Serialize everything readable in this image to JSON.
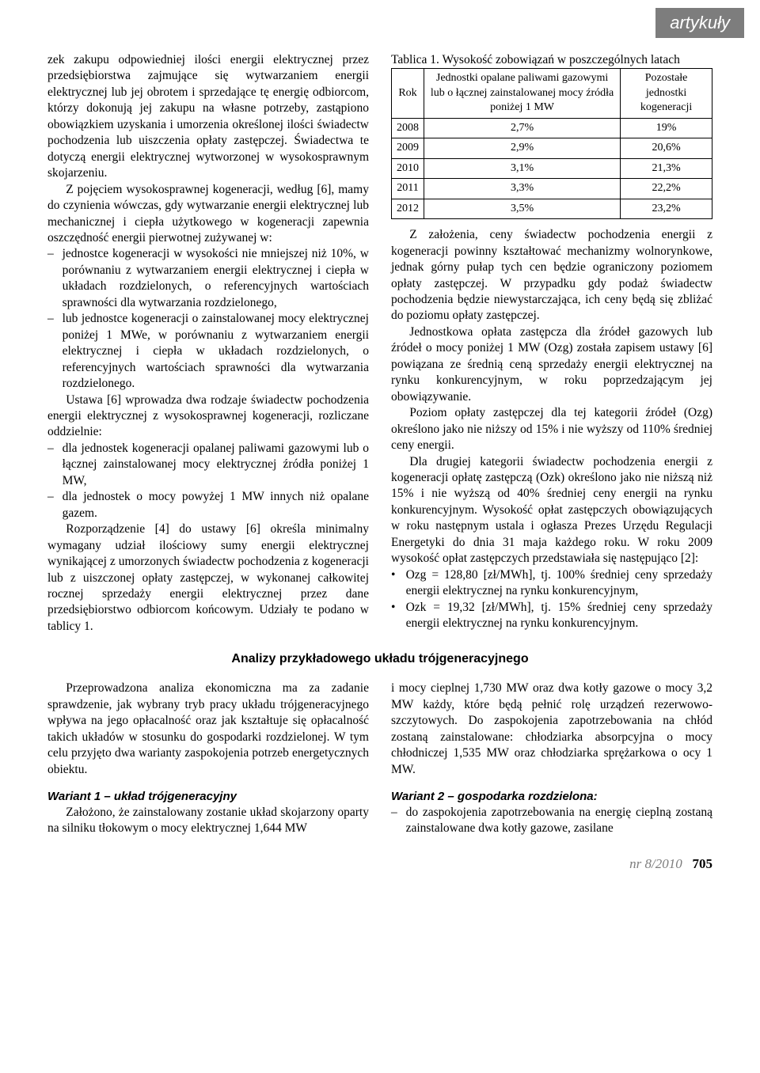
{
  "badge": "artykuły",
  "col_left": {
    "p1": "zek zakupu odpowiedniej ilości energii elektrycznej przez przedsiębiorstwa zajmujące się wytwarzaniem energii elektrycznej lub jej obrotem i sprzedające tę energię odbiorcom, którzy dokonują jej zakupu na własne potrzeby, zastąpiono obowiązkiem uzyskania i umorzenia określonej ilości świadectw pochodzenia lub uiszczenia opłaty zastępczej. Świadectwa te dotyczą energii elektrycznej wytworzonej w wysokosprawnym skojarzeniu.",
    "p2": "Z pojęciem wysokosprawnej kogeneracji, według [6], mamy do czynienia wówczas, gdy wytwarzanie energii elektrycznej lub mechanicznej i ciepła użytkowego w kogeneracji zapewnia oszczędność energii pierwotnej zużywanej w:",
    "l1": "jednostce kogeneracji w wysokości nie mniejszej niż 10%, w porównaniu z wytwarzaniem energii elektrycznej i ciepła w układach rozdzielonych, o referencyjnych wartościach sprawności dla wytwarzania rozdzielonego,",
    "l2": "lub jednostce kogeneracji o zainstalowanej mocy elektrycznej poniżej 1 MWe, w porównaniu z wytwarzaniem energii elektrycznej i ciepła w układach rozdzielonych, o referencyjnych wartościach sprawności dla wytwarzania rozdzielonego.",
    "p3": "Ustawa [6] wprowadza dwa rodzaje świadectw pochodzenia energii elektrycznej z wysokosprawnej kogeneracji, rozliczane oddzielnie:",
    "l3": "dla jednostek kogeneracji opalanej paliwami gazowymi lub o łącznej zainstalowanej mocy elektrycznej źródła poniżej 1 MW,",
    "l4": "dla jednostek o mocy powyżej 1 MW innych niż opalane gazem.",
    "p4": "Rozporządzenie [4] do ustawy [6] określa minimalny wymagany udział ilościowy sumy energii elektrycznej wynikającej z umorzonych świadectw pochodzenia z kogeneracji lub z uiszczonej opłaty zastępczej, w wykonanej całkowitej rocznej sprzedaży energii elektrycznej przez dane przedsiębiorstwo odbiorcom końcowym. Udziały te podano w tablicy 1."
  },
  "table": {
    "caption": "Tablica 1. Wysokość zobowiązań w poszczególnych latach",
    "h_rok": "Rok",
    "h_gas": "Jednostki opalane paliwami gazowymi lub o łącznej zainstalowanej mocy źródła poniżej 1 MW",
    "h_other": "Pozostałe jednostki kogeneracji",
    "rows": [
      {
        "y": "2008",
        "a": "2,7%",
        "b": "19%"
      },
      {
        "y": "2009",
        "a": "2,9%",
        "b": "20,6%"
      },
      {
        "y": "2010",
        "a": "3,1%",
        "b": "21,3%"
      },
      {
        "y": "2011",
        "a": "3,3%",
        "b": "22,2%"
      },
      {
        "y": "2012",
        "a": "3,5%",
        "b": "23,2%"
      }
    ]
  },
  "col_right": {
    "p1": "Z założenia, ceny świadectw pochodzenia energii z kogeneracji powinny kształtować mechanizmy wolnorynkowe, jednak górny pułap tych cen będzie ograniczony poziomem opłaty zastępczej. W przypadku gdy podaż świadectw pochodzenia będzie niewystarczająca, ich ceny będą się zbliżać do poziomu opłaty zastępczej.",
    "p2": "Jednostkowa opłata zastępcza dla źródeł gazowych lub źródeł o mocy poniżej 1 MW (Ozg) została zapisem ustawy [6] powiązana ze średnią ceną sprzedaży energii elektrycznej na rynku konkurencyjnym, w roku poprzedzającym jej obowiązywanie.",
    "p3": "Poziom opłaty zastępczej dla tej kategorii źródeł (Ozg) określono jako nie niższy od 15% i nie wyższy od 110% średniej ceny energii.",
    "p4": "Dla drugiej kategorii świadectw pochodzenia energii z kogeneracji opłatę zastępczą (Ozk) określono jako nie niższą niż 15% i nie wyższą od 40% średniej ceny energii na rynku konkurencyjnym. Wysokość opłat zastępczych obowiązujących w roku następnym ustala i ogłasza Prezes Urzędu Regulacji Energetyki do dnia 31 maja każdego roku. W roku 2009 wysokość opłat zastępczych przedstawiała się następująco [2]:",
    "b1": "Ozg = 128,80 [zł/MWh], tj. 100% średniej ceny sprzedaży energii elektrycznej na rynku konkurencyjnym,",
    "b2": "Ozk = 19,32 [zł/MWh], tj. 15% średniej ceny sprzedaży energii elektrycznej na rynku konkurencyjnym."
  },
  "section_heading": "Analizy przykładowego układu trójgeneracyjnego",
  "sec2_left": {
    "p1": "Przeprowadzona analiza ekonomiczna ma za zadanie sprawdzenie, jak wybrany tryb pracy układu trójgeneracyjnego wpływa na jego opłacalność oraz jak kształtuje się opłacalność takich układów w stosunku do gospodarki rozdzielonej. W tym celu przyjęto dwa warianty zaspokojenia potrzeb energetycznych obiektu.",
    "h1": "Wariant 1 – układ trójgeneracyjny",
    "p2": "Założono, że zainstalowany zostanie układ skojarzony oparty na silniku tłokowym o mocy elektrycznej 1,644 MW"
  },
  "sec2_right": {
    "p1": "i mocy cieplnej 1,730 MW oraz dwa kotły gazowe o mocy 3,2 MW każdy, które będą pełnić rolę urządzeń rezerwowo-szczytowych. Do zaspokojenia zapotrzebowania na chłód zostaną zainstalowane: chłodziarka absorpcyjna o mocy chłodniczej 1,535 MW oraz chłodziarka sprężarkowa o ocy 1 MW.",
    "h1": "Wariant 2 – gospodarka rozdzielona:",
    "l1": "do zaspokojenia zapotrzebowania na energię cieplną zostaną zainstalowane dwa kotły gazowe, zasilane"
  },
  "footer_issue": "nr 8/2010",
  "footer_page": "705"
}
